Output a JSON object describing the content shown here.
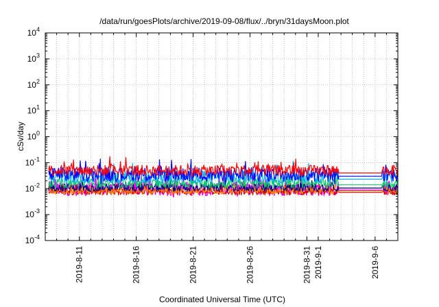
{
  "chart_data": {
    "type": "line",
    "title": "/data/run/goesPlots/archive/2019-09-08/flux/../bryn/31daysMoon.plot",
    "xlabel": "Coordinated Universal Time (UTC)",
    "ylabel": "cSv/day",
    "yscale": "log",
    "ylim": [
      0.0001,
      10000
    ],
    "y_ticks": [
      {
        "base": "10",
        "exp": "4"
      },
      {
        "base": "10",
        "exp": "3"
      },
      {
        "base": "10",
        "exp": "2"
      },
      {
        "base": "10",
        "exp": "1"
      },
      {
        "base": "10",
        "exp": "0"
      },
      {
        "base": "10",
        "exp": "-1"
      },
      {
        "base": "10",
        "exp": "-2"
      },
      {
        "base": "10",
        "exp": "-3"
      },
      {
        "base": "10",
        "exp": "-4"
      }
    ],
    "xlim": [
      "2019-08-08",
      "2019-09-08"
    ],
    "x_ticks": [
      {
        "label": "2019-8-11",
        "day": 3
      },
      {
        "label": "2019-8-16",
        "day": 8
      },
      {
        "label": "2019-8-21",
        "day": 13
      },
      {
        "label": "2019-8-26",
        "day": 18
      },
      {
        "label": "2019-8-31",
        "day": 23
      },
      {
        "label": "2019-9-1",
        "day": 24
      },
      {
        "label": "2019-9-6",
        "day": 29
      }
    ],
    "grid": true,
    "gap": {
      "start_day": 25.8,
      "end_day": 29.6
    },
    "series": [
      {
        "color": "#ff0000",
        "base": 0.05,
        "amp": 0.35,
        "flat": 0.04
      },
      {
        "color": "#0000ff",
        "base": 0.035,
        "amp": 0.45,
        "flat": 0.03
      },
      {
        "color": "#00aaff",
        "base": 0.028,
        "amp": 0.4,
        "flat": 0.023
      },
      {
        "color": "#00cc66",
        "base": 0.016,
        "amp": 0.3,
        "flat": 0.014
      },
      {
        "color": "#000080",
        "base": 0.011,
        "amp": 0.25,
        "flat": 0.0105
      },
      {
        "color": "#ff8800",
        "base": 0.008,
        "amp": 0.2,
        "flat": 0.0082
      },
      {
        "color": "#cc0000",
        "base": 0.0075,
        "amp": 0.2,
        "flat": 0.0072
      },
      {
        "color": "#ff00ff",
        "base": 0.01,
        "amp": 0.45,
        "flat": 0.0088
      }
    ]
  }
}
